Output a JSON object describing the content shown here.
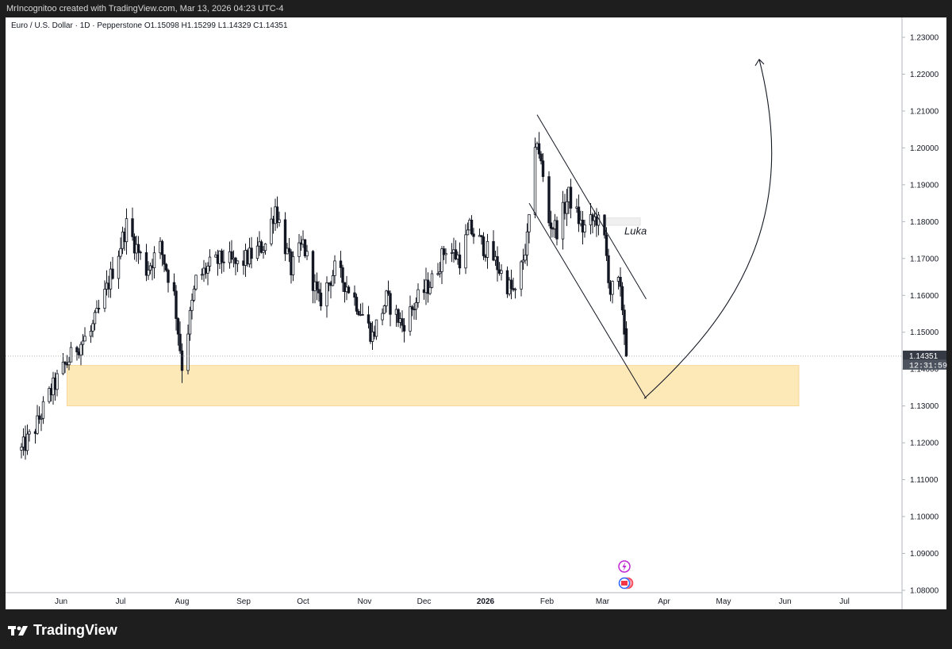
{
  "header": {
    "text": "MrIncognitoo created with TradingView.com, Mar 13, 2026 04:23 UTC-4"
  },
  "symbol": {
    "text": "Euro / U.S. Dollar · 1D · Pepperstone  O1.15098  H1.15299  L1.14329  C1.14351"
  },
  "brand": {
    "name": "TradingView"
  },
  "price_tag": {
    "price": "1.14351",
    "countdown": "12:31:59"
  },
  "annotation": {
    "label": "Luka"
  },
  "colors": {
    "zone_fill": "#fde8b8",
    "zone_stroke": "#f5d38f",
    "candle": "#131722",
    "axis_text": "#131722"
  },
  "chart_data": {
    "type": "candlestick",
    "title": "Euro / U.S. Dollar · 1D · Pepperstone",
    "ohlc_last": {
      "open": 1.15098,
      "high": 1.15299,
      "low": 1.14329,
      "close": 1.14351
    },
    "y_ticks": [
      "1.23000",
      "1.22000",
      "1.21000",
      "1.20000",
      "1.19000",
      "1.18000",
      "1.17000",
      "1.16000",
      "1.15000",
      "1.14000",
      "1.13000",
      "1.12000",
      "1.11000",
      "1.10000",
      "1.09000",
      "1.08000"
    ],
    "ylim": [
      1.08,
      1.23
    ],
    "x_ticks": [
      "Jun",
      "Jul",
      "Aug",
      "Sep",
      "Oct",
      "Nov",
      "Dec",
      "2026",
      "Feb",
      "Mar",
      "Apr",
      "May",
      "Jun",
      "Jul"
    ],
    "path_points": [
      [
        "2025-05-12",
        1.118
      ],
      [
        "2025-05-19",
        1.124
      ],
      [
        "2025-05-26",
        1.133
      ],
      [
        "2025-06-02",
        1.14
      ],
      [
        "2025-06-09",
        1.146
      ],
      [
        "2025-06-16",
        1.15
      ],
      [
        "2025-06-23",
        1.16
      ],
      [
        "2025-06-30",
        1.172
      ],
      [
        "2025-07-04",
        1.179
      ],
      [
        "2025-07-14",
        1.167
      ],
      [
        "2025-07-21",
        1.173
      ],
      [
        "2025-07-28",
        1.16
      ],
      [
        "2025-08-01",
        1.141
      ],
      [
        "2025-08-08",
        1.164
      ],
      [
        "2025-08-15",
        1.168
      ],
      [
        "2025-08-22",
        1.17
      ],
      [
        "2025-08-29",
        1.168
      ],
      [
        "2025-09-05",
        1.171
      ],
      [
        "2025-09-12",
        1.174
      ],
      [
        "2025-09-17",
        1.184
      ],
      [
        "2025-09-25",
        1.167
      ],
      [
        "2025-10-01",
        1.174
      ],
      [
        "2025-10-09",
        1.158
      ],
      [
        "2025-10-17",
        1.167
      ],
      [
        "2025-10-24",
        1.162
      ],
      [
        "2025-10-30",
        1.156
      ],
      [
        "2025-11-05",
        1.149
      ],
      [
        "2025-11-12",
        1.159
      ],
      [
        "2025-11-20",
        1.152
      ],
      [
        "2025-11-28",
        1.159
      ],
      [
        "2025-12-05",
        1.164
      ],
      [
        "2025-12-12",
        1.173
      ],
      [
        "2025-12-19",
        1.17
      ],
      [
        "2025-12-24",
        1.178
      ],
      [
        "2026-01-05",
        1.17
      ],
      [
        "2026-01-12",
        1.163
      ],
      [
        "2026-01-16",
        1.16
      ],
      [
        "2026-01-22",
        1.175
      ],
      [
        "2026-01-27",
        1.203
      ],
      [
        "2026-02-02",
        1.18
      ],
      [
        "2026-02-06",
        1.178
      ],
      [
        "2026-02-12",
        1.187
      ],
      [
        "2026-02-19",
        1.178
      ],
      [
        "2026-02-26",
        1.181
      ],
      [
        "2026-03-02",
        1.175
      ],
      [
        "2026-03-05",
        1.161
      ],
      [
        "2026-03-09",
        1.163
      ],
      [
        "2026-03-11",
        1.157
      ],
      [
        "2026-03-13",
        1.1435
      ]
    ],
    "demand_zone": {
      "from": "2025-06-04",
      "to": "2026-06-08",
      "low": 1.13,
      "high": 1.141
    },
    "channel_upper": [
      [
        "2026-01-27",
        1.209
      ],
      [
        "2026-03-23",
        1.159
      ]
    ],
    "channel_lower": [
      [
        "2026-01-23",
        1.185
      ],
      [
        "2026-03-23",
        1.132
      ]
    ],
    "projection_arrow": {
      "from": [
        "2026-03-22",
        1.132
      ],
      "to": [
        "2026-05-19",
        1.224
      ]
    },
    "annotation_box": {
      "from": "2026-03-03",
      "to": "2026-03-20",
      "low": 1.179,
      "high": 1.181
    },
    "last_price": 1.14351,
    "grid": false,
    "legend": "none"
  }
}
